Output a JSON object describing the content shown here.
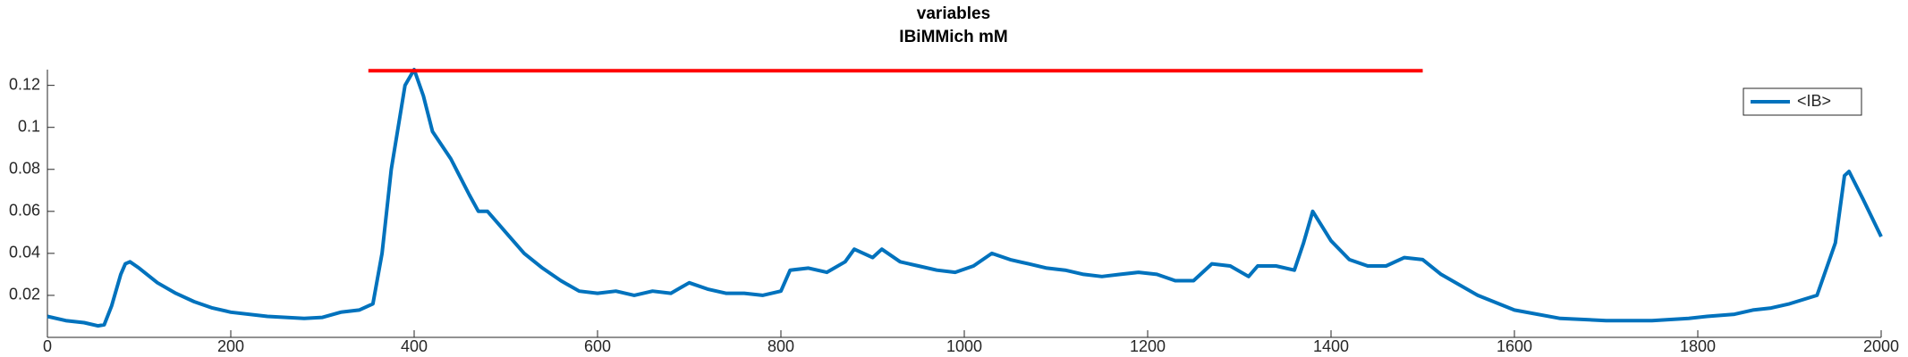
{
  "chart_data": {
    "type": "line",
    "title": "variables",
    "subtitle": "IBiMMich mM",
    "xlim": [
      0,
      2000
    ],
    "ylim": [
      0,
      0.1275
    ],
    "xticks": [
      0,
      200,
      400,
      600,
      800,
      1000,
      1200,
      1400,
      1600,
      1800,
      2000
    ],
    "yticks": [
      0.02,
      0.04,
      0.06,
      0.08,
      0.1,
      0.12
    ],
    "grid": false,
    "legend": "upper right",
    "series": [
      {
        "name": "<IB>",
        "color": "#0072bd",
        "x": [
          0,
          20,
          40,
          55,
          62,
          70,
          80,
          85,
          90,
          100,
          120,
          140,
          160,
          180,
          200,
          240,
          280,
          300,
          320,
          340,
          355,
          365,
          375,
          390,
          400,
          410,
          420,
          440,
          460,
          470,
          480,
          500,
          520,
          540,
          560,
          580,
          600,
          620,
          640,
          660,
          680,
          700,
          720,
          740,
          760,
          780,
          800,
          810,
          830,
          850,
          870,
          880,
          900,
          910,
          930,
          950,
          970,
          990,
          1010,
          1030,
          1050,
          1070,
          1090,
          1110,
          1130,
          1150,
          1170,
          1190,
          1210,
          1230,
          1250,
          1270,
          1290,
          1310,
          1320,
          1340,
          1360,
          1370,
          1380,
          1400,
          1420,
          1440,
          1460,
          1480,
          1500,
          1520,
          1560,
          1600,
          1650,
          1700,
          1750,
          1790,
          1810,
          1840,
          1860,
          1880,
          1900,
          1930,
          1950,
          1960,
          1965,
          1980,
          2000
        ],
        "values": [
          0.01,
          0.008,
          0.007,
          0.0055,
          0.006,
          0.015,
          0.03,
          0.035,
          0.036,
          0.033,
          0.026,
          0.021,
          0.017,
          0.014,
          0.012,
          0.01,
          0.009,
          0.0095,
          0.012,
          0.013,
          0.016,
          0.04,
          0.08,
          0.12,
          0.1275,
          0.115,
          0.098,
          0.085,
          0.068,
          0.06,
          0.06,
          0.05,
          0.04,
          0.033,
          0.027,
          0.022,
          0.021,
          0.022,
          0.02,
          0.022,
          0.021,
          0.026,
          0.023,
          0.021,
          0.021,
          0.02,
          0.022,
          0.032,
          0.033,
          0.031,
          0.036,
          0.042,
          0.038,
          0.042,
          0.036,
          0.034,
          0.032,
          0.031,
          0.034,
          0.04,
          0.037,
          0.035,
          0.033,
          0.032,
          0.03,
          0.029,
          0.03,
          0.031,
          0.03,
          0.027,
          0.027,
          0.035,
          0.034,
          0.029,
          0.034,
          0.034,
          0.032,
          0.045,
          0.06,
          0.046,
          0.037,
          0.034,
          0.034,
          0.038,
          0.037,
          0.03,
          0.02,
          0.013,
          0.009,
          0.008,
          0.008,
          0.009,
          0.01,
          0.011,
          0.013,
          0.014,
          0.016,
          0.02,
          0.045,
          0.077,
          0.079,
          0.066,
          0.048
        ]
      },
      {
        "color": "#ff0000",
        "x": [
          350,
          1500
        ],
        "values": [
          0.127,
          0.127
        ]
      }
    ]
  }
}
